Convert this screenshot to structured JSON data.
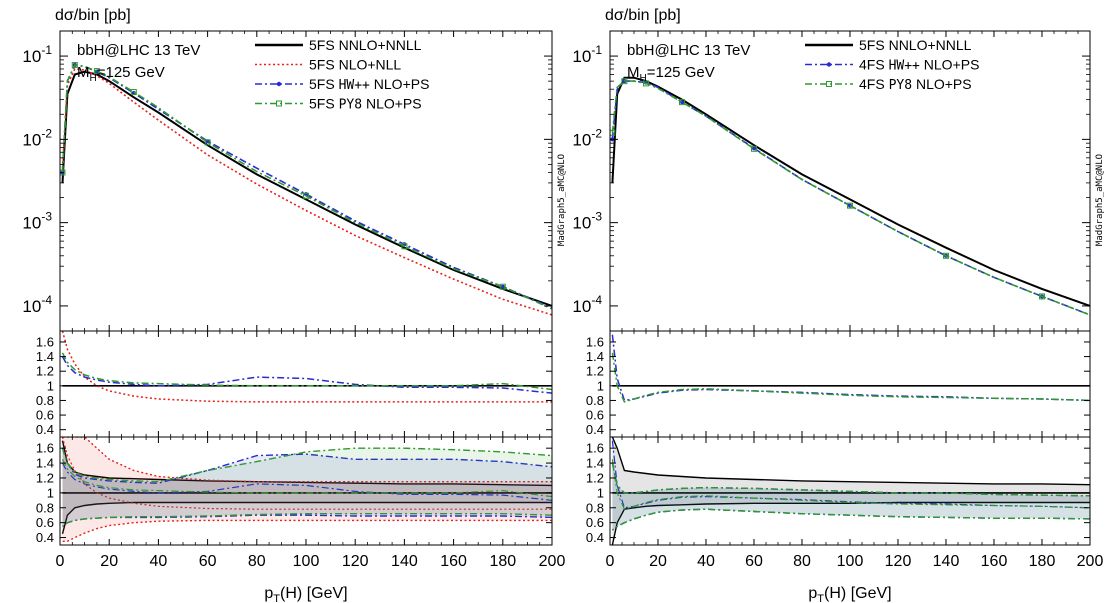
{
  "chart_data": [
    {
      "type": "line",
      "ylabel": "dσ/bin [pb]",
      "xlabel_main": "p",
      "xlabel_sub": "T",
      "xlabel_rest": "(H) [GeV]",
      "annotation_line1": "bbH@LHC 13 TeV",
      "annotation_mass_main": "M",
      "annotation_mass_sub": "H",
      "annotation_mass_rest": "=125 GeV",
      "watermark": "MadGraph5_aMC@NLO",
      "x_ticks": [
        "0",
        "20",
        "40",
        "60",
        "80",
        "100",
        "120",
        "140",
        "160",
        "180",
        "200"
      ],
      "xlim": [
        0,
        200
      ],
      "y_scale": "log",
      "ylim": [
        5e-05,
        0.2
      ],
      "y_ticks": [
        {
          "base": "10",
          "exp": "-1",
          "value": 0.1
        },
        {
          "base": "10",
          "exp": "-2",
          "value": 0.01
        },
        {
          "base": "10",
          "exp": "-3",
          "value": 0.001
        },
        {
          "base": "10",
          "exp": "-4",
          "value": 0.0001
        }
      ],
      "ratio_ticks": [
        "1.6",
        "1.4",
        "1.2",
        "1",
        "0.8",
        "0.6",
        "0.4"
      ],
      "ratio_ylim": [
        0.3,
        1.75
      ],
      "legend_placement": "top-right",
      "series": [
        {
          "name_prefix": "5FS ",
          "name_mono": "",
          "name_suffix": "NNLO+NNLL",
          "color": "#000000",
          "style": "solid",
          "x": [
            1,
            3,
            6,
            10,
            15,
            20,
            30,
            40,
            60,
            80,
            100,
            120,
            140,
            160,
            180,
            200
          ],
          "y": [
            0.003,
            0.035,
            0.06,
            0.065,
            0.06,
            0.05,
            0.032,
            0.021,
            0.0085,
            0.0038,
            0.0019,
            0.00095,
            0.0005,
            0.00027,
            0.00016,
            0.0001
          ],
          "ratio1": [
            1,
            1,
            1,
            1,
            1,
            1,
            1,
            1,
            1,
            1,
            1,
            1,
            1,
            1,
            1,
            1
          ],
          "ratio2": [
            1,
            1,
            1,
            1,
            1,
            1,
            1,
            1,
            1,
            1,
            1,
            1,
            1,
            1,
            1,
            1
          ],
          "band_up": [
            1.7,
            1.4,
            1.28,
            1.24,
            1.22,
            1.2,
            1.19,
            1.18,
            1.16,
            1.15,
            1.14,
            1.13,
            1.12,
            1.12,
            1.11,
            1.1
          ],
          "band_dn": [
            0.45,
            0.7,
            0.8,
            0.83,
            0.85,
            0.86,
            0.87,
            0.87,
            0.87,
            0.87,
            0.87,
            0.87,
            0.87,
            0.87,
            0.87,
            0.87
          ]
        },
        {
          "name_prefix": "5FS ",
          "name_mono": "",
          "name_suffix": "NLO+NLL",
          "color": "#e8201a",
          "style": "dot",
          "x": [
            1,
            3,
            6,
            10,
            15,
            20,
            30,
            40,
            60,
            80,
            100,
            120,
            140,
            160,
            180,
            200
          ],
          "y": [
            0.0045,
            0.045,
            0.07,
            0.068,
            0.058,
            0.047,
            0.028,
            0.017,
            0.0065,
            0.0029,
            0.0014,
            0.0007,
            0.00038,
            0.00021,
            0.00012,
            7.8e-05
          ],
          "ratio1": [
            1.75,
            1.5,
            1.3,
            1.12,
            1.0,
            0.93,
            0.86,
            0.82,
            0.79,
            0.78,
            0.78,
            0.78,
            0.78,
            0.78,
            0.78,
            0.78
          ],
          "ratio2": [
            1.75,
            1.5,
            1.3,
            1.12,
            1.0,
            0.93,
            0.86,
            0.82,
            0.79,
            0.78,
            0.78,
            0.78,
            0.78,
            0.78,
            0.78,
            0.78
          ],
          "band_up": [
            1.75,
            1.75,
            1.75,
            1.75,
            1.6,
            1.45,
            1.3,
            1.22,
            1.17,
            1.15,
            1.15,
            1.15,
            1.15,
            1.15,
            1.15,
            1.15
          ],
          "band_dn": [
            0.35,
            0.35,
            0.4,
            0.46,
            0.52,
            0.56,
            0.6,
            0.62,
            0.63,
            0.63,
            0.63,
            0.63,
            0.63,
            0.63,
            0.63,
            0.63
          ]
        },
        {
          "name_prefix": "5FS ",
          "name_mono": "HW++",
          "name_suffix": " NLO+PS",
          "color": "#2a2ad6",
          "style": "dashdot",
          "marker": "dot",
          "x": [
            1,
            3,
            6,
            10,
            15,
            20,
            30,
            40,
            60,
            80,
            100,
            120,
            140,
            160,
            180,
            200
          ],
          "y": [
            0.004,
            0.05,
            0.078,
            0.075,
            0.065,
            0.055,
            0.036,
            0.023,
            0.0095,
            0.0045,
            0.0022,
            0.00105,
            0.00055,
            0.00029,
            0.00017,
            9.5e-05
          ],
          "ratio1": [
            1.4,
            1.28,
            1.18,
            1.12,
            1.08,
            1.05,
            1.02,
            1.0,
            1.02,
            1.12,
            1.1,
            1.02,
            0.98,
            0.98,
            0.97,
            0.9
          ],
          "ratio2": [
            1.4,
            1.28,
            1.18,
            1.12,
            1.08,
            1.05,
            1.02,
            1.0,
            1.02,
            1.12,
            1.1,
            1.02,
            0.98,
            0.98,
            0.97,
            0.9
          ],
          "band_up": [
            1.6,
            1.4,
            1.25,
            1.2,
            1.18,
            1.16,
            1.14,
            1.13,
            1.3,
            1.5,
            1.52,
            1.45,
            1.45,
            1.45,
            1.42,
            1.35
          ],
          "band_dn": [
            0.55,
            0.6,
            0.63,
            0.65,
            0.66,
            0.67,
            0.67,
            0.67,
            0.68,
            0.7,
            0.7,
            0.69,
            0.69,
            0.69,
            0.69,
            0.67
          ]
        },
        {
          "name_prefix": "5FS ",
          "name_mono": "PY8",
          "name_suffix": " NLO+PS",
          "color": "#2e9a2e",
          "style": "dashdot",
          "marker": "square",
          "x": [
            1,
            3,
            6,
            10,
            15,
            20,
            30,
            40,
            60,
            80,
            100,
            120,
            140,
            160,
            180,
            200
          ],
          "y": [
            0.004,
            0.05,
            0.078,
            0.075,
            0.066,
            0.056,
            0.037,
            0.024,
            0.0092,
            0.0041,
            0.0021,
            0.001,
            0.00052,
            0.00028,
            0.00017,
            9.2e-05
          ],
          "ratio1": [
            1.45,
            1.32,
            1.22,
            1.15,
            1.1,
            1.07,
            1.04,
            1.03,
            1.01,
            1.0,
            1.0,
            1.0,
            1.0,
            1.0,
            1.03,
            0.95
          ],
          "ratio2": [
            1.45,
            1.32,
            1.22,
            1.15,
            1.1,
            1.07,
            1.04,
            1.03,
            1.01,
            1.0,
            1.0,
            1.0,
            1.0,
            1.0,
            1.03,
            0.95
          ],
          "band_up": [
            1.6,
            1.4,
            1.28,
            1.22,
            1.2,
            1.18,
            1.16,
            1.15,
            1.3,
            1.42,
            1.55,
            1.6,
            1.6,
            1.58,
            1.55,
            1.5
          ],
          "band_dn": [
            0.55,
            0.6,
            0.63,
            0.65,
            0.66,
            0.67,
            0.68,
            0.68,
            0.69,
            0.71,
            0.72,
            0.72,
            0.72,
            0.72,
            0.72,
            0.7
          ]
        }
      ]
    },
    {
      "type": "line",
      "ylabel": "dσ/bin [pb]",
      "xlabel_main": "p",
      "xlabel_sub": "T",
      "xlabel_rest": "(H) [GeV]",
      "annotation_line1": "bbH@LHC 13 TeV",
      "annotation_mass_main": "M",
      "annotation_mass_sub": "H",
      "annotation_mass_rest": "=125 GeV",
      "watermark": "MadGraph5_aMC@NLO",
      "x_ticks": [
        "0",
        "20",
        "40",
        "60",
        "80",
        "100",
        "120",
        "140",
        "160",
        "180",
        "200"
      ],
      "xlim": [
        0,
        200
      ],
      "y_scale": "log",
      "ylim": [
        5e-05,
        0.2
      ],
      "y_ticks": [
        {
          "base": "10",
          "exp": "-1",
          "value": 0.1
        },
        {
          "base": "10",
          "exp": "-2",
          "value": 0.01
        },
        {
          "base": "10",
          "exp": "-3",
          "value": 0.001
        },
        {
          "base": "10",
          "exp": "-4",
          "value": 0.0001
        }
      ],
      "ratio_ticks": [
        "1.6",
        "1.4",
        "1.2",
        "1",
        "0.8",
        "0.6",
        "0.4"
      ],
      "ratio_ylim": [
        0.3,
        1.75
      ],
      "legend_placement": "top-right",
      "series": [
        {
          "name_prefix": "5FS ",
          "name_mono": "",
          "name_suffix": "NNLO+NNLL",
          "color": "#000000",
          "style": "solid",
          "x": [
            1,
            3,
            6,
            10,
            15,
            20,
            30,
            40,
            60,
            80,
            100,
            120,
            140,
            160,
            180,
            200
          ],
          "y": [
            0.003,
            0.035,
            0.055,
            0.055,
            0.05,
            0.043,
            0.03,
            0.02,
            0.0085,
            0.0038,
            0.0019,
            0.00095,
            0.0005,
            0.00027,
            0.00016,
            0.0001
          ],
          "ratio1": [
            1,
            1,
            1,
            1,
            1,
            1,
            1,
            1,
            1,
            1,
            1,
            1,
            1,
            1,
            1,
            1
          ],
          "ratio2": [
            1,
            1,
            1,
            1,
            1,
            1,
            1,
            1,
            1,
            1,
            1,
            1,
            1,
            1,
            1,
            1
          ],
          "band_up": [
            1.75,
            1.6,
            1.3,
            1.28,
            1.26,
            1.24,
            1.22,
            1.2,
            1.18,
            1.16,
            1.15,
            1.14,
            1.13,
            1.12,
            1.12,
            1.11
          ],
          "band_dn": [
            0.3,
            0.6,
            0.78,
            0.8,
            0.82,
            0.83,
            0.84,
            0.85,
            0.86,
            0.86,
            0.86,
            0.87,
            0.87,
            0.87,
            0.87,
            0.87
          ]
        },
        {
          "name_prefix": "4FS ",
          "name_mono": "HW++",
          "name_suffix": " NLO+PS",
          "color": "#2a2ad6",
          "style": "dashdot",
          "marker": "dot",
          "x": [
            1,
            3,
            6,
            10,
            15,
            20,
            30,
            40,
            60,
            80,
            100,
            120,
            140,
            160,
            180,
            200
          ],
          "y": [
            0.01,
            0.04,
            0.05,
            0.05,
            0.048,
            0.042,
            0.028,
            0.019,
            0.0078,
            0.0033,
            0.0016,
            0.00078,
            0.0004,
            0.00022,
            0.00013,
            7.8e-05
          ],
          "ratio1": [
            1.7,
            1.1,
            0.8,
            0.82,
            0.86,
            0.9,
            0.94,
            0.95,
            0.93,
            0.91,
            0.88,
            0.86,
            0.85,
            0.83,
            0.82,
            0.8
          ],
          "ratio2": [
            1.7,
            1.1,
            0.8,
            0.82,
            0.86,
            0.9,
            0.94,
            0.95,
            0.93,
            0.91,
            0.88,
            0.86,
            0.85,
            0.83,
            0.82,
            0.8
          ],
          "band_up": [
            1.4,
            1.1,
            1.0,
            1.0,
            1.02,
            1.04,
            1.06,
            1.07,
            1.06,
            1.04,
            1.02,
            1.0,
            1.0,
            0.98,
            0.97,
            0.96
          ],
          "band_dn": [
            0.5,
            0.55,
            0.6,
            0.65,
            0.7,
            0.74,
            0.77,
            0.78,
            0.75,
            0.72,
            0.7,
            0.68,
            0.67,
            0.66,
            0.66,
            0.65
          ]
        },
        {
          "name_prefix": "4FS ",
          "name_mono": "PY8",
          "name_suffix": " NLO+PS",
          "color": "#2e9a2e",
          "style": "dashdot",
          "marker": "square",
          "x": [
            1,
            3,
            6,
            10,
            15,
            20,
            30,
            40,
            60,
            80,
            100,
            120,
            140,
            160,
            180,
            200
          ],
          "y": [
            0.012,
            0.042,
            0.05,
            0.05,
            0.047,
            0.041,
            0.028,
            0.019,
            0.0077,
            0.0033,
            0.0016,
            0.00078,
            0.0004,
            0.00022,
            0.00013,
            7.8e-05
          ],
          "ratio1": [
            1.45,
            1.0,
            0.78,
            0.82,
            0.87,
            0.91,
            0.95,
            0.96,
            0.93,
            0.9,
            0.87,
            0.85,
            0.84,
            0.83,
            0.82,
            0.8
          ],
          "ratio2": [
            1.45,
            1.0,
            0.78,
            0.82,
            0.87,
            0.91,
            0.95,
            0.96,
            0.93,
            0.9,
            0.87,
            0.85,
            0.84,
            0.83,
            0.82,
            0.8
          ],
          "band_up": [
            1.4,
            1.1,
            1.0,
            1.0,
            1.02,
            1.04,
            1.06,
            1.07,
            1.06,
            1.04,
            1.02,
            1.0,
            1.0,
            0.98,
            0.97,
            0.96
          ],
          "band_dn": [
            0.5,
            0.55,
            0.6,
            0.65,
            0.7,
            0.74,
            0.77,
            0.78,
            0.75,
            0.72,
            0.7,
            0.68,
            0.67,
            0.66,
            0.66,
            0.65
          ]
        }
      ]
    }
  ]
}
